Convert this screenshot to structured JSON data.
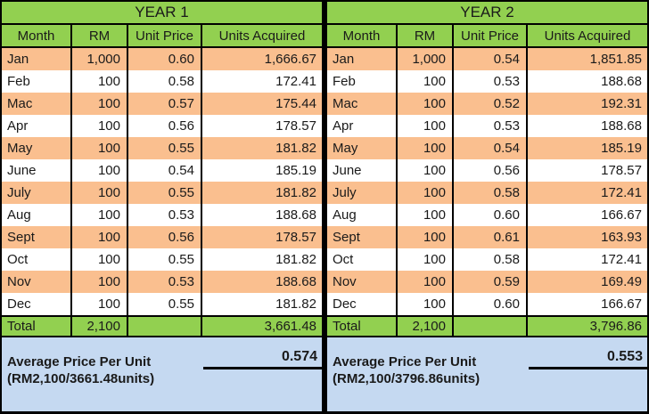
{
  "colors": {
    "header_green": "#92D050",
    "row_orange": "#FABF8F",
    "row_white": "#FFFFFF",
    "footer_blue": "#C5D9F1",
    "border_black": "#000000"
  },
  "chart_data": [
    {
      "type": "table",
      "title": "YEAR 1",
      "columns": [
        "Month",
        "RM",
        "Unit Price",
        "Units Acquired"
      ],
      "rows": [
        [
          "Jan",
          "1,000",
          "0.60",
          "1,666.67"
        ],
        [
          "Feb",
          "100",
          "0.58",
          "172.41"
        ],
        [
          "Mac",
          "100",
          "0.57",
          "175.44"
        ],
        [
          "Apr",
          "100",
          "0.56",
          "178.57"
        ],
        [
          "May",
          "100",
          "0.55",
          "181.82"
        ],
        [
          "June",
          "100",
          "0.54",
          "185.19"
        ],
        [
          "July",
          "100",
          "0.55",
          "181.82"
        ],
        [
          "Aug",
          "100",
          "0.53",
          "188.68"
        ],
        [
          "Sept",
          "100",
          "0.56",
          "178.57"
        ],
        [
          "Oct",
          "100",
          "0.55",
          "181.82"
        ],
        [
          "Nov",
          "100",
          "0.53",
          "188.68"
        ],
        [
          "Dec",
          "100",
          "0.55",
          "181.82"
        ]
      ],
      "total": [
        "Total",
        "2,100",
        "",
        "3,661.48"
      ],
      "average": {
        "label": "Average Price Per Unit",
        "value": "0.574",
        "formula": "(RM2,100/3661.48units)"
      }
    },
    {
      "type": "table",
      "title": "YEAR 2",
      "columns": [
        "Month",
        "RM",
        "Unit Price",
        "Units Acquired"
      ],
      "rows": [
        [
          "Jan",
          "1,000",
          "0.54",
          "1,851.85"
        ],
        [
          "Feb",
          "100",
          "0.53",
          "188.68"
        ],
        [
          "Mac",
          "100",
          "0.52",
          "192.31"
        ],
        [
          "Apr",
          "100",
          "0.53",
          "188.68"
        ],
        [
          "May",
          "100",
          "0.54",
          "185.19"
        ],
        [
          "June",
          "100",
          "0.56",
          "178.57"
        ],
        [
          "July",
          "100",
          "0.58",
          "172.41"
        ],
        [
          "Aug",
          "100",
          "0.60",
          "166.67"
        ],
        [
          "Sept",
          "100",
          "0.61",
          "163.93"
        ],
        [
          "Oct",
          "100",
          "0.58",
          "172.41"
        ],
        [
          "Nov",
          "100",
          "0.59",
          "169.49"
        ],
        [
          "Dec",
          "100",
          "0.60",
          "166.67"
        ]
      ],
      "total": [
        "Total",
        "2,100",
        "",
        "3,796.86"
      ],
      "average": {
        "label": "Average Price Per Unit",
        "value": "0.553",
        "formula": "(RM2,100/3796.86units)"
      }
    }
  ]
}
